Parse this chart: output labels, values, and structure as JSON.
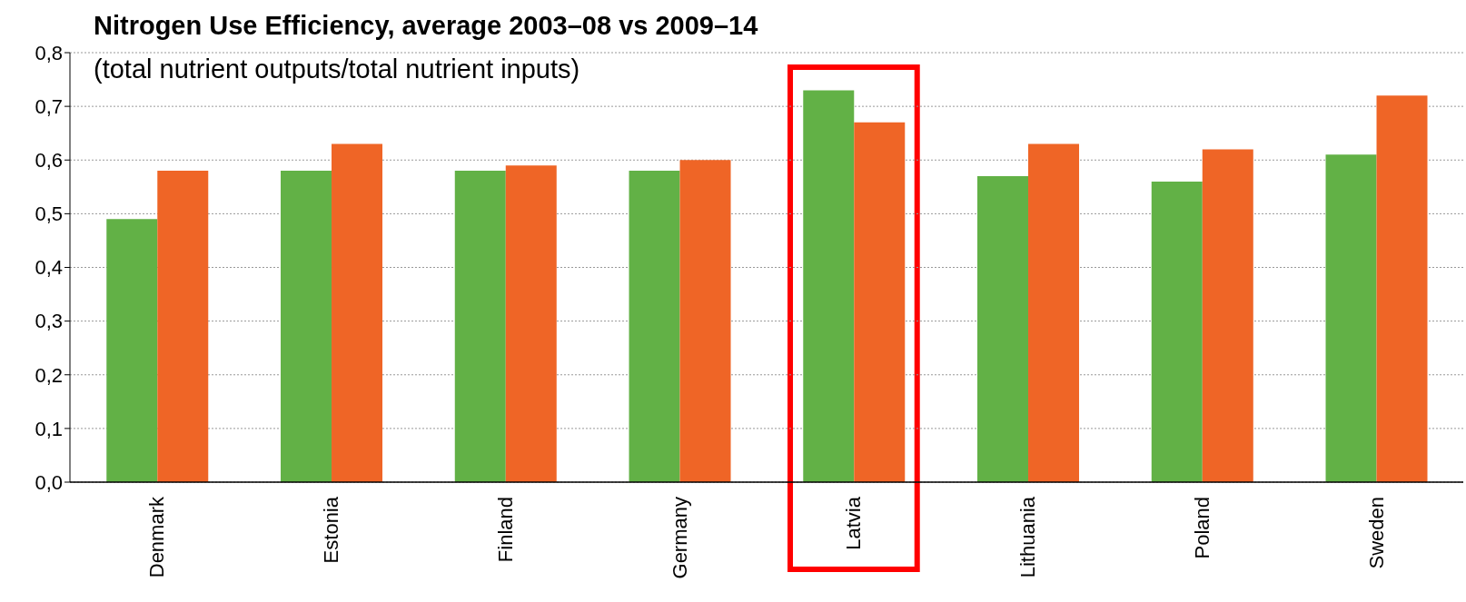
{
  "chart_data": {
    "type": "bar",
    "title": "Nitrogen Use Efficiency, average 2003–08 vs 2009–14",
    "subtitle": "(total nutrient outputs/total nutrient inputs)",
    "categories": [
      "Denmark",
      "Estonia",
      "Finland",
      "Germany",
      "Latvia",
      "Lithuania",
      "Poland",
      "Sweden"
    ],
    "series": [
      {
        "color": "#62b146",
        "values": [
          0.49,
          0.58,
          0.58,
          0.58,
          0.73,
          0.57,
          0.56,
          0.61
        ]
      },
      {
        "color": "#ef6526",
        "values": [
          0.58,
          0.63,
          0.59,
          0.6,
          0.67,
          0.63,
          0.62,
          0.72
        ]
      }
    ],
    "ylim": [
      0,
      0.8
    ],
    "yticks": [
      {
        "value": 0,
        "label": "0,0"
      },
      {
        "value": 0.1,
        "label": "0,1"
      },
      {
        "value": 0.2,
        "label": "0,2"
      },
      {
        "value": 0.3,
        "label": "0,3"
      },
      {
        "value": 0.4,
        "label": "0,4"
      },
      {
        "value": 0.5,
        "label": "0,5"
      },
      {
        "value": 0.6,
        "label": "0,6"
      },
      {
        "value": 0.7,
        "label": "0,7"
      },
      {
        "value": 0.8,
        "label": "0,8"
      }
    ],
    "grid": "y",
    "bands": [
      {
        "axis": "x",
        "from": "Latvia",
        "to": "Latvia",
        "color": "#ff0000"
      }
    ]
  }
}
